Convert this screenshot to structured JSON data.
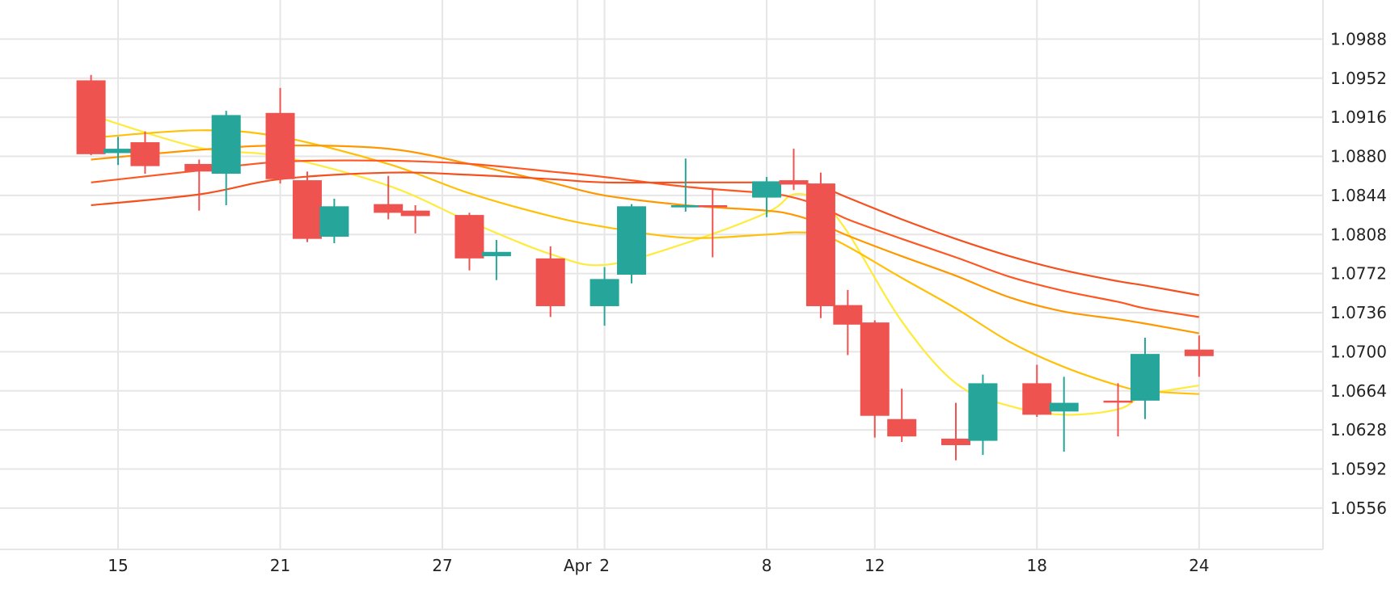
{
  "chart_data": {
    "type": "candlestick",
    "x_tick_labels": [
      {
        "date": "2024-03-15",
        "label": "15"
      },
      {
        "date": "2024-03-21",
        "label": "21"
      },
      {
        "date": "2024-03-27",
        "label": "27"
      },
      {
        "date": "2024-04-01",
        "label": "Apr"
      },
      {
        "date": "2024-04-02",
        "label": "2"
      },
      {
        "date": "2024-04-08",
        "label": "8"
      },
      {
        "date": "2024-04-12",
        "label": "12"
      },
      {
        "date": "2024-04-18",
        "label": "18"
      },
      {
        "date": "2024-04-24",
        "label": "24"
      }
    ],
    "y_tick_labels": [
      "1.0988",
      "1.0952",
      "1.0916",
      "1.0880",
      "1.0844",
      "1.0808",
      "1.0772",
      "1.0736",
      "1.0700",
      "1.0664",
      "1.0628",
      "1.0592",
      "1.0556"
    ],
    "ylim": [
      1.0518,
      1.1024
    ],
    "grid": true,
    "colors": {
      "up": "#26a69a",
      "down": "#ef5350",
      "grid": "#e6e6e6",
      "ma_lines": [
        "#ffeb3b",
        "#ffc107",
        "#ff9800",
        "#ff5722",
        "#f4511e"
      ]
    },
    "candles": [
      {
        "date": "2024-03-14",
        "open": 1.095,
        "high": 1.0955,
        "low": 1.0881,
        "close": 1.0882
      },
      {
        "date": "2024-03-15",
        "open": 1.0883,
        "high": 1.0898,
        "low": 1.0872,
        "close": 1.0887
      },
      {
        "date": "2024-03-16",
        "open": 1.0893,
        "high": 1.0903,
        "low": 1.0864,
        "close": 1.0871
      },
      {
        "date": "2024-03-18",
        "open": 1.0873,
        "high": 1.0877,
        "low": 1.083,
        "close": 1.0866
      },
      {
        "date": "2024-03-19",
        "open": 1.0864,
        "high": 1.0922,
        "low": 1.0835,
        "close": 1.0918
      },
      {
        "date": "2024-03-21",
        "open": 1.092,
        "high": 1.0943,
        "low": 1.0855,
        "close": 1.0859
      },
      {
        "date": "2024-03-22",
        "open": 1.0858,
        "high": 1.0866,
        "low": 1.0801,
        "close": 1.0804
      },
      {
        "date": "2024-03-23",
        "open": 1.0806,
        "high": 1.0841,
        "low": 1.08,
        "close": 1.0834
      },
      {
        "date": "2024-03-25",
        "open": 1.0836,
        "high": 1.0862,
        "low": 1.0822,
        "close": 1.0828
      },
      {
        "date": "2024-03-26",
        "open": 1.083,
        "high": 1.0835,
        "low": 1.0809,
        "close": 1.0825
      },
      {
        "date": "2024-03-28",
        "open": 1.0826,
        "high": 1.0828,
        "low": 1.0775,
        "close": 1.0786
      },
      {
        "date": "2024-03-29",
        "open": 1.0788,
        "high": 1.0803,
        "low": 1.0766,
        "close": 1.0792
      },
      {
        "date": "2024-03-31",
        "open": 1.0786,
        "high": 1.0797,
        "low": 1.0732,
        "close": 1.0742
      },
      {
        "date": "2024-04-02",
        "open": 1.0742,
        "high": 1.0778,
        "low": 1.0724,
        "close": 1.0767
      },
      {
        "date": "2024-04-03",
        "open": 1.0771,
        "high": 1.0836,
        "low": 1.0763,
        "close": 1.0834
      },
      {
        "date": "2024-04-05",
        "open": 1.0833,
        "high": 1.0878,
        "low": 1.0829,
        "close": 1.0835
      },
      {
        "date": "2024-04-06",
        "open": 1.0835,
        "high": 1.085,
        "low": 1.0787,
        "close": 1.0834
      },
      {
        "date": "2024-04-08",
        "open": 1.0842,
        "high": 1.0861,
        "low": 1.0824,
        "close": 1.0857
      },
      {
        "date": "2024-04-09",
        "open": 1.0858,
        "high": 1.0887,
        "low": 1.0849,
        "close": 1.0854
      },
      {
        "date": "2024-04-10",
        "open": 1.0855,
        "high": 1.0865,
        "low": 1.0731,
        "close": 1.0742
      },
      {
        "date": "2024-04-11",
        "open": 1.0743,
        "high": 1.0757,
        "low": 1.0697,
        "close": 1.0725
      },
      {
        "date": "2024-04-12",
        "open": 1.0727,
        "high": 1.0729,
        "low": 1.0621,
        "close": 1.0641
      },
      {
        "date": "2024-04-13",
        "open": 1.0638,
        "high": 1.0666,
        "low": 1.0617,
        "close": 1.0622
      },
      {
        "date": "2024-04-15",
        "open": 1.062,
        "high": 1.0653,
        "low": 1.06,
        "close": 1.0614
      },
      {
        "date": "2024-04-16",
        "open": 1.0618,
        "high": 1.0679,
        "low": 1.0605,
        "close": 1.0671
      },
      {
        "date": "2024-04-18",
        "open": 1.0671,
        "high": 1.0688,
        "low": 1.064,
        "close": 1.0642
      },
      {
        "date": "2024-04-19",
        "open": 1.0645,
        "high": 1.0677,
        "low": 1.0608,
        "close": 1.0653
      },
      {
        "date": "2024-04-21",
        "open": 1.0655,
        "high": 1.0671,
        "low": 1.0622,
        "close": 1.0654
      },
      {
        "date": "2024-04-22",
        "open": 1.0655,
        "high": 1.0713,
        "low": 1.0638,
        "close": 1.0698
      },
      {
        "date": "2024-04-24",
        "open": 1.0702,
        "high": 1.0715,
        "low": 1.0677,
        "close": 1.0696
      }
    ],
    "moving_averages": [
      {
        "points": [
          [
            "2024-03-14",
            1.0918
          ],
          [
            "2024-03-18",
            1.0888
          ],
          [
            "2024-03-21",
            1.088
          ],
          [
            "2024-03-25",
            1.0853
          ],
          [
            "2024-03-28",
            1.082
          ],
          [
            "2024-03-31",
            1.079
          ],
          [
            "2024-04-02",
            1.078
          ],
          [
            "2024-04-05",
            1.08
          ],
          [
            "2024-04-08",
            1.0828
          ],
          [
            "2024-04-09",
            1.0845
          ],
          [
            "2024-04-10",
            1.0838
          ],
          [
            "2024-04-11",
            1.081
          ],
          [
            "2024-04-13",
            1.0728
          ],
          [
            "2024-04-15",
            1.0671
          ],
          [
            "2024-04-17",
            1.065
          ],
          [
            "2024-04-19",
            1.0642
          ],
          [
            "2024-04-21",
            1.0647
          ],
          [
            "2024-04-22",
            1.066
          ],
          [
            "2024-04-24",
            1.0669
          ]
        ]
      },
      {
        "points": [
          [
            "2024-03-14",
            1.0897
          ],
          [
            "2024-03-18",
            1.0904
          ],
          [
            "2024-03-21",
            1.0898
          ],
          [
            "2024-03-25",
            1.0873
          ],
          [
            "2024-03-28",
            1.0846
          ],
          [
            "2024-03-31",
            1.0825
          ],
          [
            "2024-04-02",
            1.0815
          ],
          [
            "2024-04-05",
            1.0805
          ],
          [
            "2024-04-08",
            1.0808
          ],
          [
            "2024-04-09",
            1.081
          ],
          [
            "2024-04-10",
            1.0808
          ],
          [
            "2024-04-11",
            1.0797
          ],
          [
            "2024-04-13",
            1.0768
          ],
          [
            "2024-04-15",
            1.074
          ],
          [
            "2024-04-17",
            1.0709
          ],
          [
            "2024-04-19",
            1.0686
          ],
          [
            "2024-04-21",
            1.0669
          ],
          [
            "2024-04-22",
            1.0664
          ],
          [
            "2024-04-24",
            1.0661
          ]
        ]
      },
      {
        "points": [
          [
            "2024-03-14",
            1.0877
          ],
          [
            "2024-03-18",
            1.0886
          ],
          [
            "2024-03-21",
            1.089
          ],
          [
            "2024-03-25",
            1.0887
          ],
          [
            "2024-03-28",
            1.0873
          ],
          [
            "2024-03-31",
            1.0856
          ],
          [
            "2024-04-02",
            1.0844
          ],
          [
            "2024-04-05",
            1.0835
          ],
          [
            "2024-04-08",
            1.083
          ],
          [
            "2024-04-09",
            1.0826
          ],
          [
            "2024-04-10",
            1.0818
          ],
          [
            "2024-04-11",
            1.0807
          ],
          [
            "2024-04-13",
            1.0788
          ],
          [
            "2024-04-15",
            1.077
          ],
          [
            "2024-04-17",
            1.075
          ],
          [
            "2024-04-19",
            1.0737
          ],
          [
            "2024-04-21",
            1.073
          ],
          [
            "2024-04-22",
            1.0726
          ],
          [
            "2024-04-24",
            1.0717
          ]
        ]
      },
      {
        "points": [
          [
            "2024-03-14",
            1.0856
          ],
          [
            "2024-03-18",
            1.0867
          ],
          [
            "2024-03-21",
            1.0875
          ],
          [
            "2024-03-25",
            1.0876
          ],
          [
            "2024-03-28",
            1.0873
          ],
          [
            "2024-03-31",
            1.0866
          ],
          [
            "2024-04-02",
            1.0861
          ],
          [
            "2024-04-05",
            1.0852
          ],
          [
            "2024-04-08",
            1.0846
          ],
          [
            "2024-04-09",
            1.0842
          ],
          [
            "2024-04-10",
            1.0834
          ],
          [
            "2024-04-11",
            1.0822
          ],
          [
            "2024-04-13",
            1.0804
          ],
          [
            "2024-04-15",
            1.0787
          ],
          [
            "2024-04-17",
            1.0769
          ],
          [
            "2024-04-19",
            1.0756
          ],
          [
            "2024-04-21",
            1.0746
          ],
          [
            "2024-04-22",
            1.074
          ],
          [
            "2024-04-24",
            1.0732
          ]
        ]
      },
      {
        "points": [
          [
            "2024-03-14",
            1.0835
          ],
          [
            "2024-03-18",
            1.0845
          ],
          [
            "2024-03-21",
            1.0859
          ],
          [
            "2024-03-25",
            1.0865
          ],
          [
            "2024-03-28",
            1.0863
          ],
          [
            "2024-03-31",
            1.0859
          ],
          [
            "2024-04-02",
            1.0856
          ],
          [
            "2024-04-05",
            1.0856
          ],
          [
            "2024-04-08",
            1.0856
          ],
          [
            "2024-04-09",
            1.0856
          ],
          [
            "2024-04-10",
            1.0852
          ],
          [
            "2024-04-11",
            1.0842
          ],
          [
            "2024-04-13",
            1.0822
          ],
          [
            "2024-04-15",
            1.0804
          ],
          [
            "2024-04-17",
            1.0788
          ],
          [
            "2024-04-19",
            1.0775
          ],
          [
            "2024-04-21",
            1.0765
          ],
          [
            "2024-04-22",
            1.0761
          ],
          [
            "2024-04-24",
            1.0752
          ]
        ]
      }
    ]
  }
}
